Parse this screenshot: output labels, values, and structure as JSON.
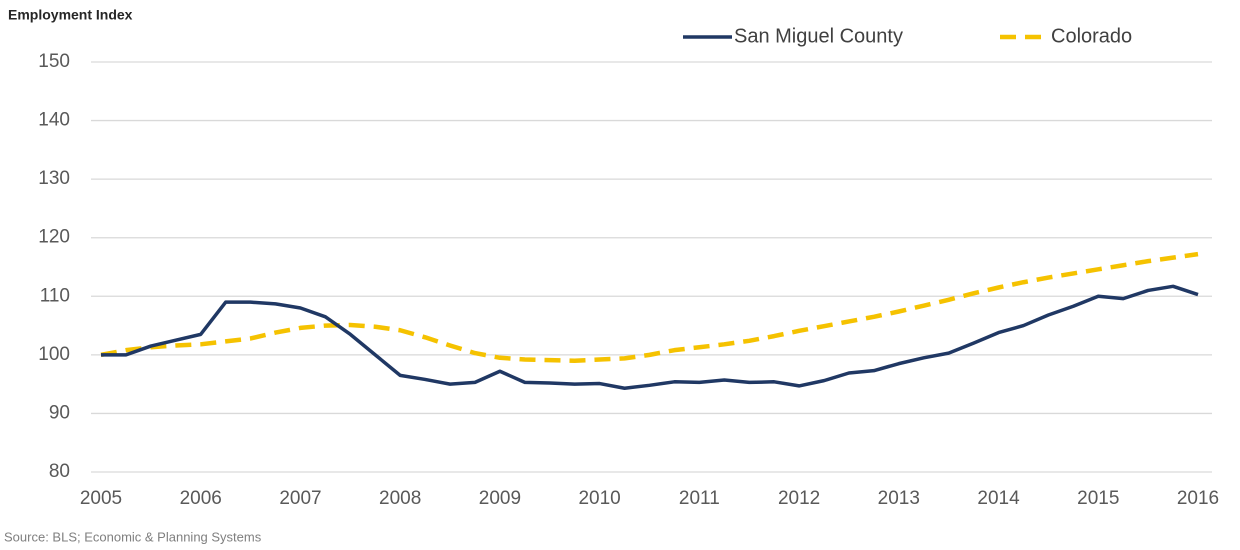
{
  "chart_data": {
    "type": "line",
    "title": "Employment Index",
    "source": "Source: BLS; Economic & Planning Systems",
    "x": [
      2005,
      2005.25,
      2005.5,
      2005.75,
      2006,
      2006.25,
      2006.5,
      2006.75,
      2007,
      2007.25,
      2007.5,
      2007.75,
      2008,
      2008.25,
      2008.5,
      2008.75,
      2009,
      2009.25,
      2009.5,
      2009.75,
      2010,
      2010.25,
      2010.5,
      2010.75,
      2011,
      2011.25,
      2011.5,
      2011.75,
      2012,
      2012.25,
      2012.5,
      2012.75,
      2013,
      2013.25,
      2013.5,
      2013.75,
      2014,
      2014.25,
      2014.5,
      2014.75,
      2015,
      2015.25,
      2015.5,
      2015.75,
      2016
    ],
    "series": [
      {
        "name": "San Miguel County",
        "color": "#203864",
        "dashed": false,
        "values": [
          100,
          100,
          101.5,
          102.5,
          103.5,
          109,
          109,
          108.7,
          108,
          106.5,
          103.5,
          100,
          96.5,
          95.8,
          95,
          95.3,
          97.2,
          95.3,
          95.2,
          95,
          95.1,
          94.3,
          94.8,
          95.4,
          95.3,
          95.7,
          95.3,
          95.4,
          94.7,
          95.6,
          96.9,
          97.3,
          98.5,
          99.5,
          100.3,
          102,
          103.8,
          105,
          106.8,
          108.3,
          110,
          109.6,
          111,
          111.7,
          110.3
        ]
      },
      {
        "name": "Colorado",
        "color": "#f5c200",
        "dashed": true,
        "values": [
          100,
          100.8,
          101.3,
          101.6,
          101.8,
          102.3,
          102.8,
          103.8,
          104.6,
          105,
          105.1,
          104.8,
          104.2,
          103,
          101.6,
          100.3,
          99.5,
          99.2,
          99.1,
          99,
          99.2,
          99.4,
          100,
          100.8,
          101.3,
          101.8,
          102.4,
          103.2,
          104.1,
          104.9,
          105.7,
          106.5,
          107.4,
          108.4,
          109.4,
          110.5,
          111.5,
          112.4,
          113.2,
          113.9,
          114.6,
          115.3,
          116,
          116.6,
          117.2
        ]
      }
    ],
    "xlim": [
      2005,
      2016
    ],
    "xticks": [
      2005,
      2006,
      2007,
      2008,
      2009,
      2010,
      2011,
      2012,
      2013,
      2014,
      2015,
      2016
    ],
    "ylim": [
      80,
      150
    ],
    "yticks": [
      80,
      90,
      100,
      110,
      120,
      130,
      140,
      150
    ],
    "grid": true
  }
}
